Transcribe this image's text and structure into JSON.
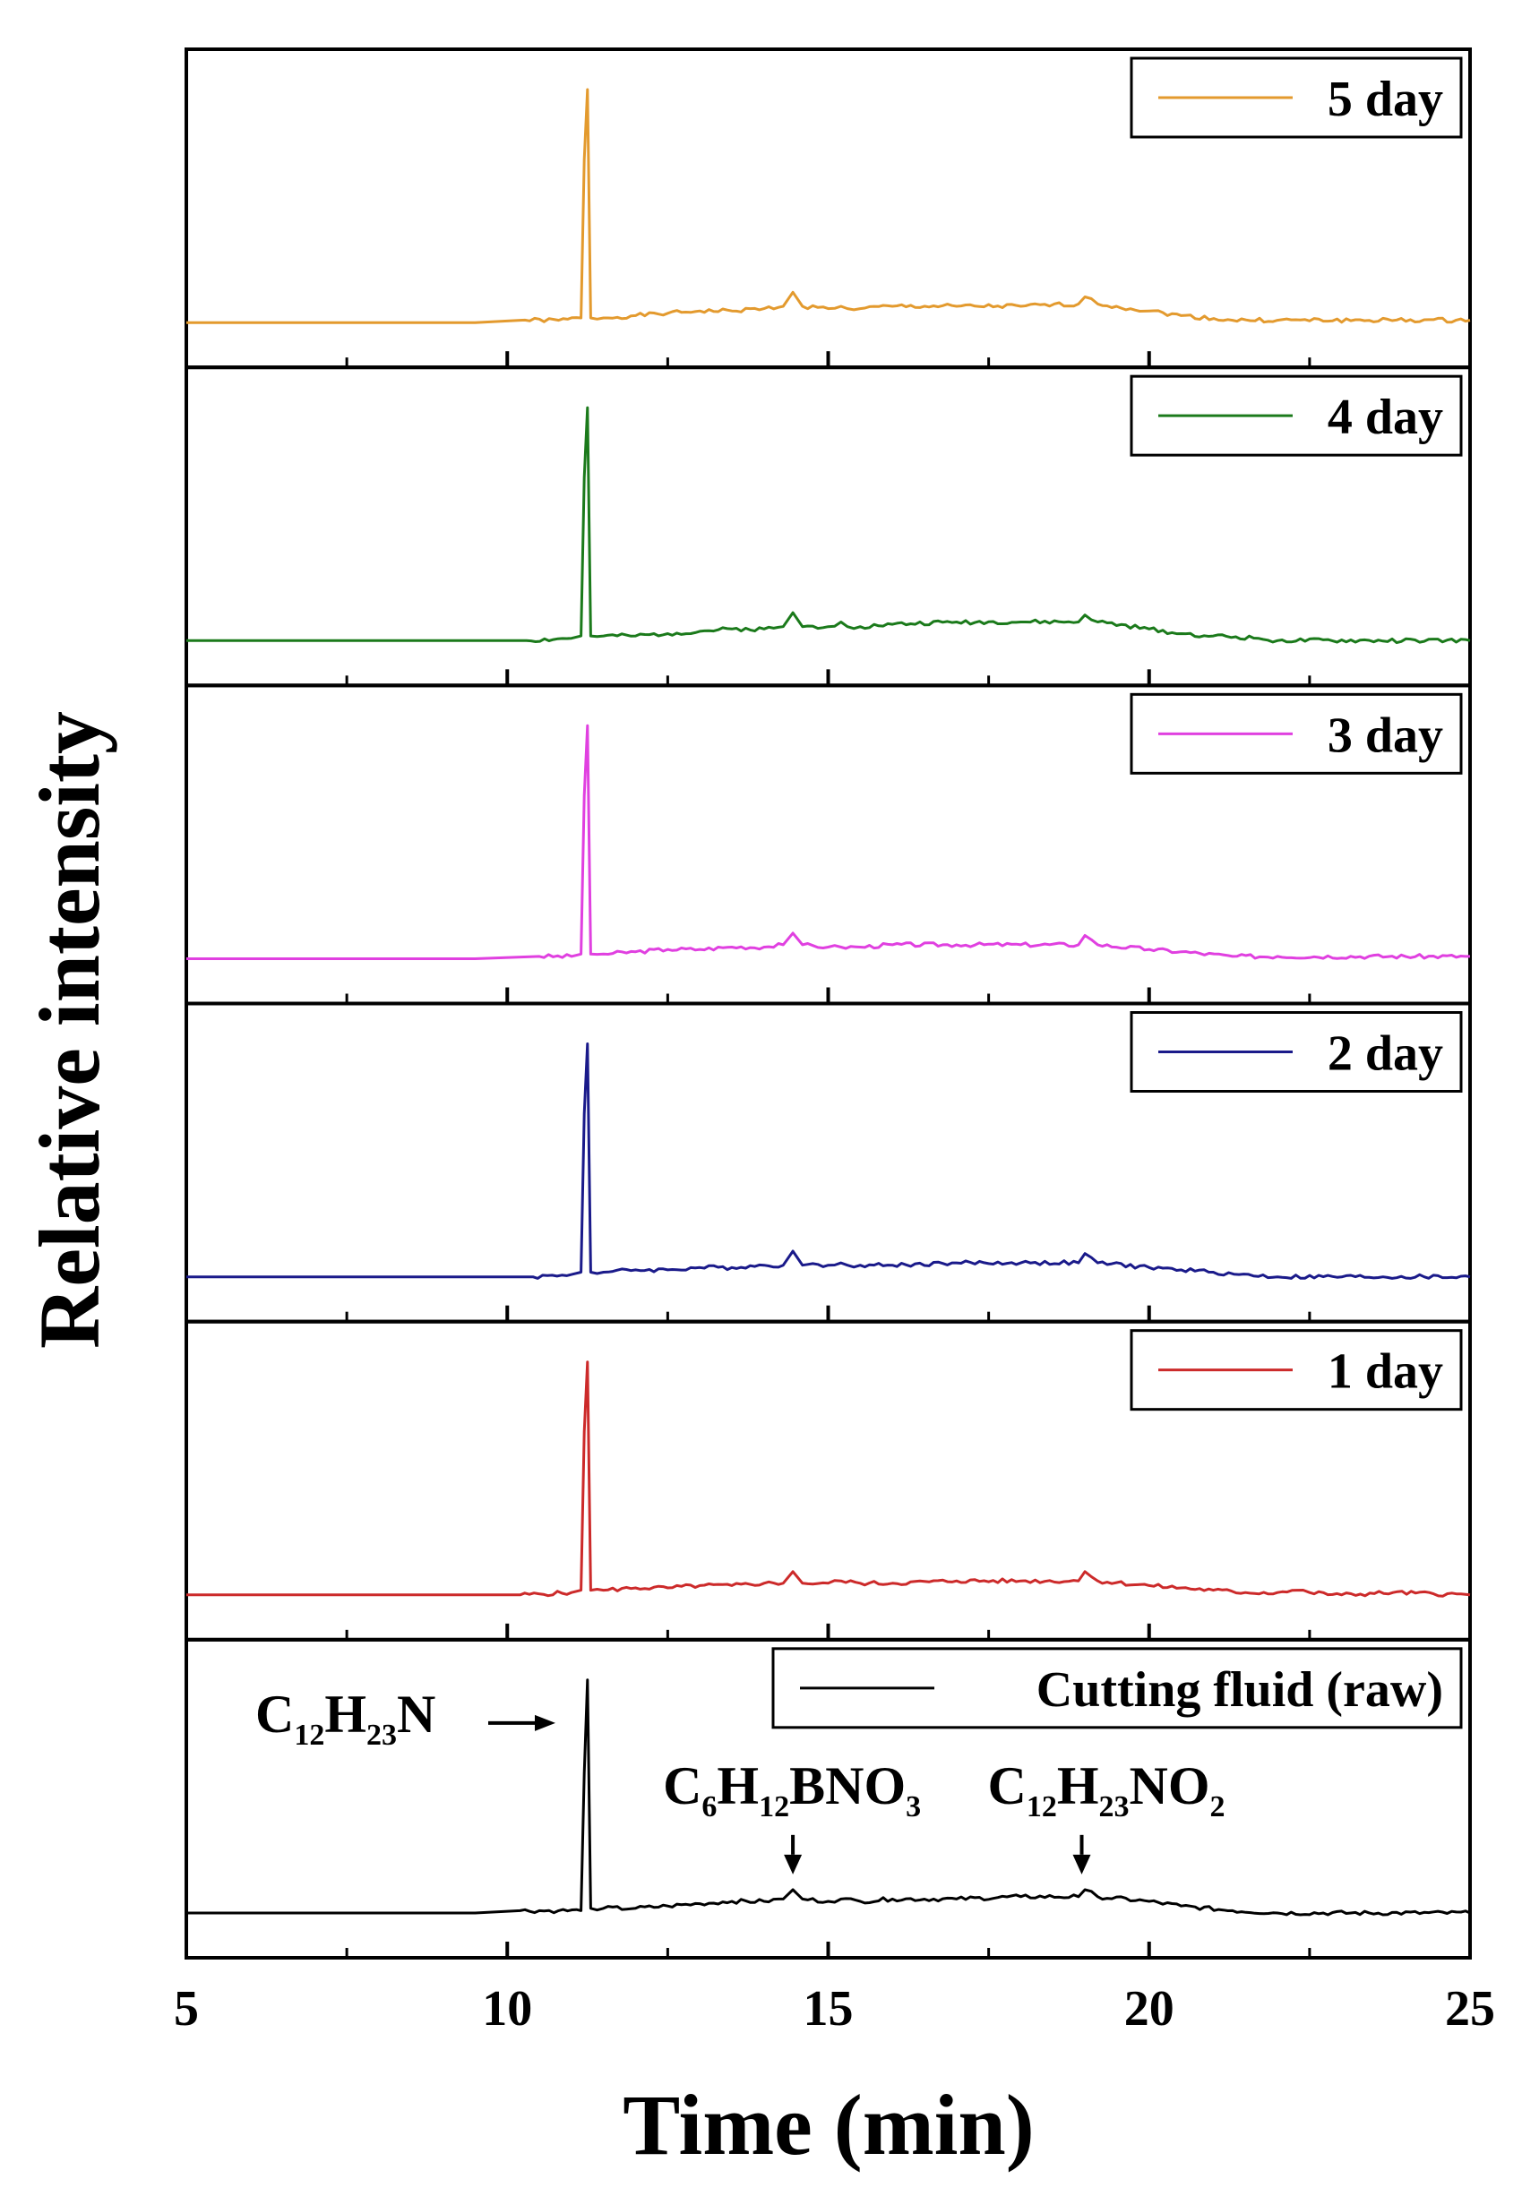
{
  "chart_data": {
    "type": "line",
    "layout": "stacked-panels",
    "xlabel": "Time (min)",
    "ylabel": "Relative intensity",
    "xlim": [
      5,
      25
    ],
    "xticks": [
      5,
      10,
      15,
      20,
      25
    ],
    "minor_xticks": [
      7.5,
      12.5,
      17.5,
      22.5
    ],
    "grid": false,
    "panels": [
      {
        "name": "5 day",
        "color": "#e39a2e",
        "x": [
          5,
          9.5,
          10.2,
          10.8,
          11.15,
          11.2,
          11.25,
          11.3,
          11.5,
          12,
          12.5,
          13,
          13.5,
          14,
          14.3,
          14.45,
          14.6,
          15,
          15.2,
          15.3,
          15.5,
          16,
          17,
          18,
          18.9,
          19,
          19.2,
          20,
          20.5,
          21.3,
          22,
          25
        ],
        "y": [
          0.0,
          0.0,
          0.01,
          0.01,
          0.02,
          0.7,
          1.0,
          0.02,
          0.02,
          0.03,
          0.04,
          0.05,
          0.05,
          0.06,
          0.07,
          0.13,
          0.07,
          0.06,
          0.07,
          0.06,
          0.06,
          0.07,
          0.07,
          0.07,
          0.08,
          0.11,
          0.08,
          0.05,
          0.03,
          0.01,
          0.01,
          0.01
        ]
      },
      {
        "name": "4 day",
        "color": "#1b7a1b",
        "x": [
          5,
          10.3,
          11,
          11.15,
          11.2,
          11.25,
          11.3,
          11.5,
          12,
          12.5,
          13,
          13.5,
          14,
          14.3,
          14.45,
          14.6,
          15,
          15.2,
          15.3,
          15.5,
          16,
          17,
          18,
          18.9,
          19,
          19.2,
          20,
          20.5,
          21,
          21.7,
          22,
          25
        ],
        "y": [
          0.0,
          0.0,
          0.01,
          0.02,
          0.7,
          1.0,
          0.02,
          0.02,
          0.02,
          0.03,
          0.04,
          0.05,
          0.05,
          0.06,
          0.12,
          0.06,
          0.06,
          0.08,
          0.06,
          0.06,
          0.07,
          0.08,
          0.08,
          0.08,
          0.11,
          0.08,
          0.05,
          0.03,
          0.02,
          0.01,
          0.0,
          0.0
        ]
      },
      {
        "name": "3 day",
        "color": "#e040e0",
        "x": [
          5,
          9.5,
          10.5,
          11,
          11.15,
          11.2,
          11.25,
          11.3,
          11.5,
          12,
          12.5,
          13,
          13.5,
          14,
          14.3,
          14.45,
          14.6,
          15,
          15.2,
          15.5,
          16,
          17,
          18,
          18.9,
          19,
          19.2,
          20,
          20.5,
          21.3,
          22,
          25
        ],
        "y": [
          0.0,
          0.0,
          0.01,
          0.01,
          0.02,
          0.7,
          1.0,
          0.02,
          0.02,
          0.03,
          0.04,
          0.04,
          0.05,
          0.05,
          0.06,
          0.11,
          0.06,
          0.05,
          0.05,
          0.05,
          0.06,
          0.06,
          0.06,
          0.06,
          0.1,
          0.06,
          0.04,
          0.03,
          0.01,
          0.01,
          0.01
        ]
      },
      {
        "name": "2 day",
        "color": "#1a1a8a",
        "x": [
          5,
          10.4,
          11,
          11.15,
          11.2,
          11.25,
          11.3,
          11.5,
          12,
          12.5,
          13,
          13.5,
          14,
          14.3,
          14.45,
          14.6,
          15,
          15.2,
          15.3,
          15.5,
          16,
          17,
          18,
          18.9,
          19,
          19.2,
          20,
          20.5,
          21,
          21.4,
          22,
          25
        ],
        "y": [
          0.0,
          0.0,
          0.01,
          0.02,
          0.7,
          1.0,
          0.02,
          0.02,
          0.03,
          0.03,
          0.04,
          0.04,
          0.05,
          0.05,
          0.11,
          0.05,
          0.05,
          0.06,
          0.05,
          0.05,
          0.05,
          0.06,
          0.06,
          0.06,
          0.1,
          0.06,
          0.04,
          0.03,
          0.02,
          0.01,
          0.0,
          0.0
        ]
      },
      {
        "name": "1 day",
        "color": "#cc2a2a",
        "x": [
          5,
          10.2,
          11,
          11.15,
          11.2,
          11.25,
          11.3,
          11.5,
          12,
          12.5,
          13,
          13.5,
          14,
          14.3,
          14.45,
          14.6,
          15,
          15.2,
          15.5,
          16,
          17,
          18,
          18.9,
          19,
          19.2,
          20,
          20.5,
          21,
          21.5,
          22,
          22.3,
          22.5,
          23,
          23.8,
          25
        ],
        "y": [
          0.0,
          0.0,
          0.01,
          0.02,
          0.7,
          1.0,
          0.02,
          0.02,
          0.03,
          0.03,
          0.04,
          0.04,
          0.05,
          0.05,
          0.1,
          0.05,
          0.05,
          0.06,
          0.05,
          0.05,
          0.06,
          0.06,
          0.06,
          0.1,
          0.06,
          0.04,
          0.03,
          0.02,
          0.01,
          0.01,
          0.02,
          0.01,
          0.0,
          0.01,
          0.0
        ]
      },
      {
        "name": "Cutting fluid (raw)",
        "color": "#000000",
        "x": [
          5,
          9.5,
          10.2,
          10.8,
          11.15,
          11.2,
          11.25,
          11.3,
          11.5,
          12,
          12.5,
          13,
          13.5,
          14,
          14.3,
          14.45,
          14.6,
          15,
          15.2,
          15.5,
          16,
          17,
          18,
          18.9,
          19,
          19.2,
          20,
          20.5,
          21.3,
          22,
          25
        ],
        "y": [
          0.0,
          0.0,
          0.01,
          0.01,
          0.01,
          0.6,
          1.0,
          0.02,
          0.02,
          0.02,
          0.03,
          0.04,
          0.05,
          0.05,
          0.06,
          0.1,
          0.06,
          0.05,
          0.06,
          0.05,
          0.06,
          0.06,
          0.07,
          0.07,
          0.1,
          0.07,
          0.05,
          0.03,
          0.01,
          0.0,
          0.0
        ]
      }
    ],
    "annotations": [
      {
        "base": "C",
        "sub": "12",
        "base2": "H",
        "sub2": "23",
        "base3": "N",
        "x": 11.25,
        "arrow": "right"
      },
      {
        "base": "C",
        "sub": "6",
        "base2": "H",
        "sub2": "12",
        "base3": "BNO",
        "sub3": "3",
        "x": 14.45,
        "arrow": "down"
      },
      {
        "base": "C",
        "sub": "12",
        "base2": "H",
        "sub2": "23",
        "base3": "NO",
        "sub3": "2",
        "x": 18.95,
        "arrow": "down"
      }
    ]
  }
}
